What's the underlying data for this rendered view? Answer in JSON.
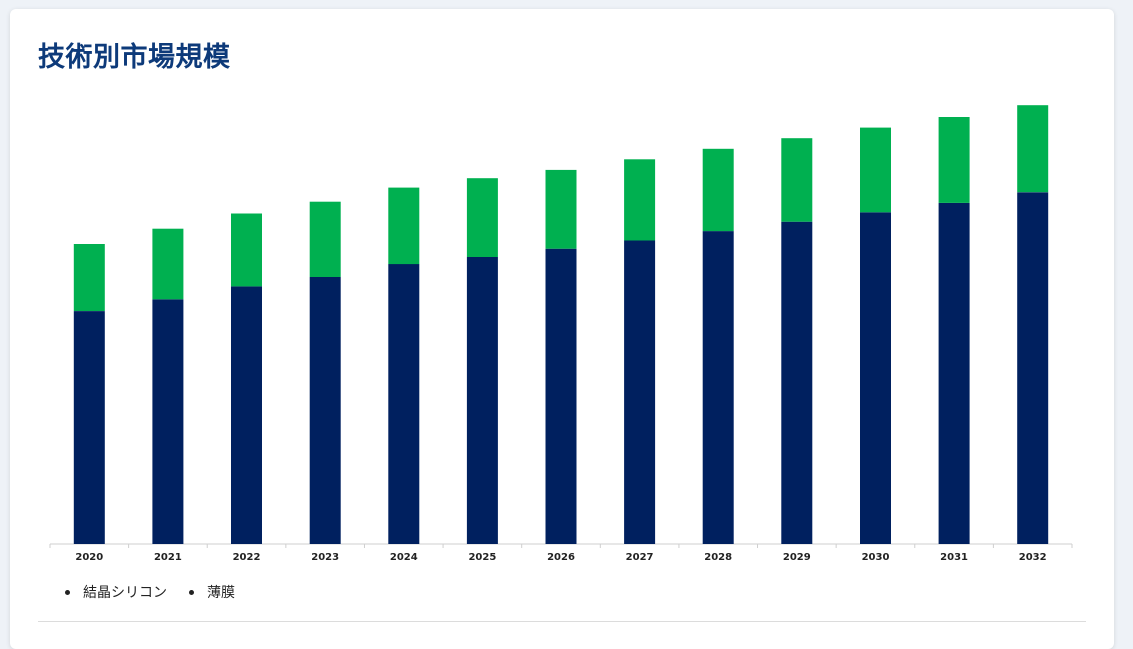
{
  "title": "技術別市場規模",
  "chart_data": {
    "type": "bar",
    "stacked": true,
    "categories": [
      "2020",
      "2021",
      "2022",
      "2023",
      "2024",
      "2025",
      "2026",
      "2027",
      "2028",
      "2029",
      "2030",
      "2031",
      "2032"
    ],
    "series": [
      {
        "name": "結晶シリコン",
        "color": "#00205f",
        "values": [
          198,
          208,
          219,
          227,
          238,
          244,
          251,
          258,
          266,
          274,
          282,
          290,
          299
        ]
      },
      {
        "name": "薄膜",
        "color": "#00b050",
        "values": [
          57,
          60,
          62,
          64,
          65,
          67,
          67,
          69,
          70,
          71,
          72,
          73,
          74
        ]
      }
    ],
    "ylim": [
      0,
      380
    ],
    "grid": false,
    "legend": "bottom-left"
  }
}
